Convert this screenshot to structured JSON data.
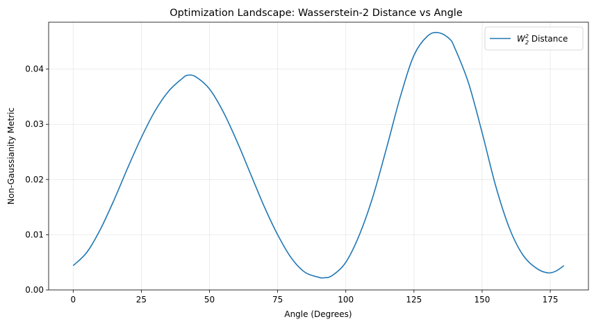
{
  "chart_data": {
    "type": "line",
    "title": "Optimization Landscape: Wasserstein-2 Distance vs Angle",
    "xlabel": "Angle (Degrees)",
    "ylabel": "Non-Gaussianity Metric",
    "xlim": [
      -9,
      189
    ],
    "ylim": [
      0,
      0.0485
    ],
    "xticks": [
      0,
      25,
      50,
      75,
      100,
      125,
      150,
      175
    ],
    "yticks": [
      0.0,
      0.01,
      0.02,
      0.03,
      0.04
    ],
    "xtick_labels": [
      "0",
      "25",
      "50",
      "75",
      "100",
      "125",
      "150",
      "175"
    ],
    "ytick_labels": [
      "0.00",
      "0.01",
      "0.02",
      "0.03",
      "0.04"
    ],
    "grid": true,
    "legend_position": "top-right",
    "colors": {
      "line": "#1f77b4"
    },
    "series": [
      {
        "name": "W₂² Distance",
        "legend_main": "W",
        "legend_sub": "2",
        "legend_sup": "2",
        "legend_rest": " Distance",
        "x": [
          0,
          5,
          10,
          15,
          20,
          25,
          30,
          35,
          40,
          42,
          45,
          50,
          55,
          60,
          65,
          70,
          75,
          80,
          85,
          90,
          92,
          95,
          100,
          105,
          110,
          115,
          120,
          125,
          130,
          134,
          138,
          140,
          145,
          150,
          155,
          160,
          165,
          170,
          174,
          177,
          180
        ],
        "y": [
          0.0044,
          0.0068,
          0.011,
          0.0163,
          0.0221,
          0.0276,
          0.0324,
          0.036,
          0.0383,
          0.0389,
          0.0386,
          0.0364,
          0.0323,
          0.027,
          0.0211,
          0.0152,
          0.01,
          0.0058,
          0.0032,
          0.0023,
          0.0022,
          0.0026,
          0.005,
          0.01,
          0.017,
          0.0258,
          0.035,
          0.0425,
          0.046,
          0.0466,
          0.0455,
          0.0438,
          0.0375,
          0.0285,
          0.0188,
          0.0112,
          0.0063,
          0.0039,
          0.0031,
          0.0034,
          0.0044
        ]
      }
    ]
  }
}
